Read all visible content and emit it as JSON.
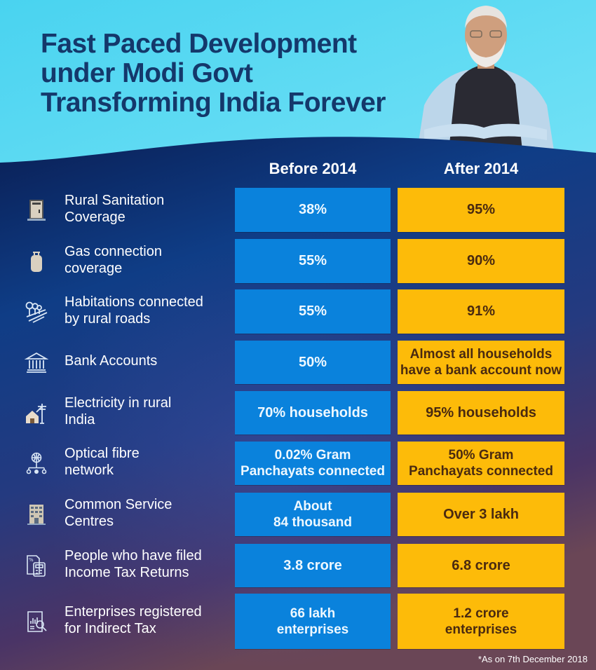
{
  "header": {
    "title_lines": [
      "Fast Paced Development",
      "under Modi Govt",
      "Transforming India Forever"
    ]
  },
  "columns": {
    "before": "Before 2014",
    "after": "After 2014"
  },
  "colors": {
    "before_cell": "#0a82dc",
    "after_cell": "#fdbb09",
    "title": "#14386b",
    "panel_top": "#0c2a62",
    "panel_bottom": "#5a3a5c"
  },
  "rows": [
    {
      "icon": "toilet-door-icon",
      "label_lines": [
        "Rural Sanitation",
        "Coverage"
      ],
      "before": [
        "38%"
      ],
      "after": [
        "95%"
      ]
    },
    {
      "icon": "gas-cylinder-icon",
      "label_lines": [
        "Gas connection",
        "coverage"
      ],
      "before": [
        "55%"
      ],
      "after": [
        "90%"
      ]
    },
    {
      "icon": "rural-road-icon",
      "label_lines": [
        "Habitations connected",
        "by rural roads"
      ],
      "before": [
        "55%"
      ],
      "after": [
        "91%"
      ]
    },
    {
      "icon": "bank-icon",
      "label_lines": [
        "Bank Accounts"
      ],
      "before": [
        "50%"
      ],
      "after": [
        "Almost all households",
        "have a bank account now"
      ]
    },
    {
      "icon": "house-power-pole-icon",
      "label_lines": [
        "Electricity in rural",
        "India"
      ],
      "before": [
        "70% households"
      ],
      "after": [
        "95% households"
      ]
    },
    {
      "icon": "globe-network-icon",
      "label_lines": [
        "Optical fibre",
        "network"
      ],
      "before": [
        "0.02% Gram",
        "Panchayats connected"
      ],
      "after": [
        "50% Gram",
        "Panchayats connected"
      ]
    },
    {
      "icon": "building-icon",
      "label_lines": [
        "Common Service",
        "Centres"
      ],
      "before": [
        "About",
        "84 thousand"
      ],
      "after": [
        "Over 3 lakh"
      ]
    },
    {
      "icon": "tax-calculator-icon",
      "label_lines": [
        "People who have filed",
        "Income Tax Returns"
      ],
      "before": [
        "3.8 crore"
      ],
      "after": [
        "6.8 crore"
      ]
    },
    {
      "icon": "tax-document-search-icon",
      "label_lines": [
        "Enterprises registered",
        "for Indirect Tax"
      ],
      "before": [
        "66 lakh",
        "enterprises"
      ],
      "after": [
        "1.2 crore",
        "enterprises"
      ]
    }
  ],
  "footnote": "*As on 7th December 2018"
}
